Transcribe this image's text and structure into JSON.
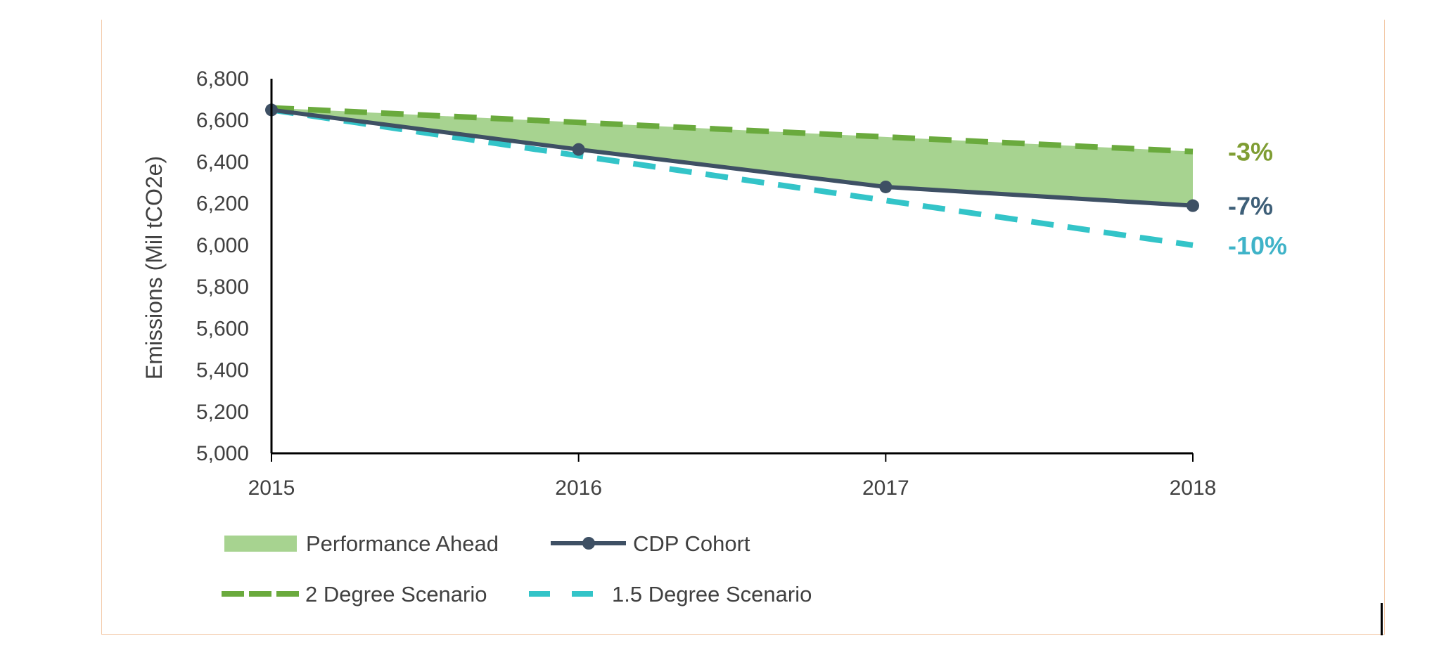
{
  "chart_data": {
    "type": "line",
    "x": [
      "2015",
      "2016",
      "2017",
      "2018"
    ],
    "ylabel": "Emissions (Mil tCO2e)",
    "ylim": [
      5000,
      6800
    ],
    "yticks": [
      5000,
      5200,
      5400,
      5600,
      5800,
      6000,
      6200,
      6400,
      6600,
      6800
    ],
    "ytick_labels": [
      "5,000",
      "5,200",
      "5,400",
      "5,600",
      "5,800",
      "6,000",
      "6,200",
      "6,400",
      "6,600",
      "6,800"
    ],
    "grid": false,
    "legend_placement": "bottom",
    "series": [
      {
        "name": "CDP Cohort",
        "values": [
          6650,
          6460,
          6280,
          6190
        ],
        "color": "#3e5064",
        "style": "solid-markers",
        "end_label": "-7%",
        "end_label_color": "#3e5f78"
      },
      {
        "name": "2 Degree Scenario",
        "values": [
          6660,
          6590,
          6520,
          6450
        ],
        "color": "#6aaa3d",
        "style": "dashed",
        "end_label": "-3%",
        "end_label_color": "#7f9d33"
      },
      {
        "name": "1.5 Degree Scenario",
        "values": [
          6650,
          6430,
          6215,
          6000
        ],
        "color": "#33c4c8",
        "style": "dashed",
        "end_label": "-10%",
        "end_label_color": "#3fb3c8"
      }
    ],
    "area": {
      "name": "Performance Ahead",
      "color": "#a7d390",
      "between": [
        "CDP Cohort",
        "2 Degree Scenario"
      ]
    }
  }
}
